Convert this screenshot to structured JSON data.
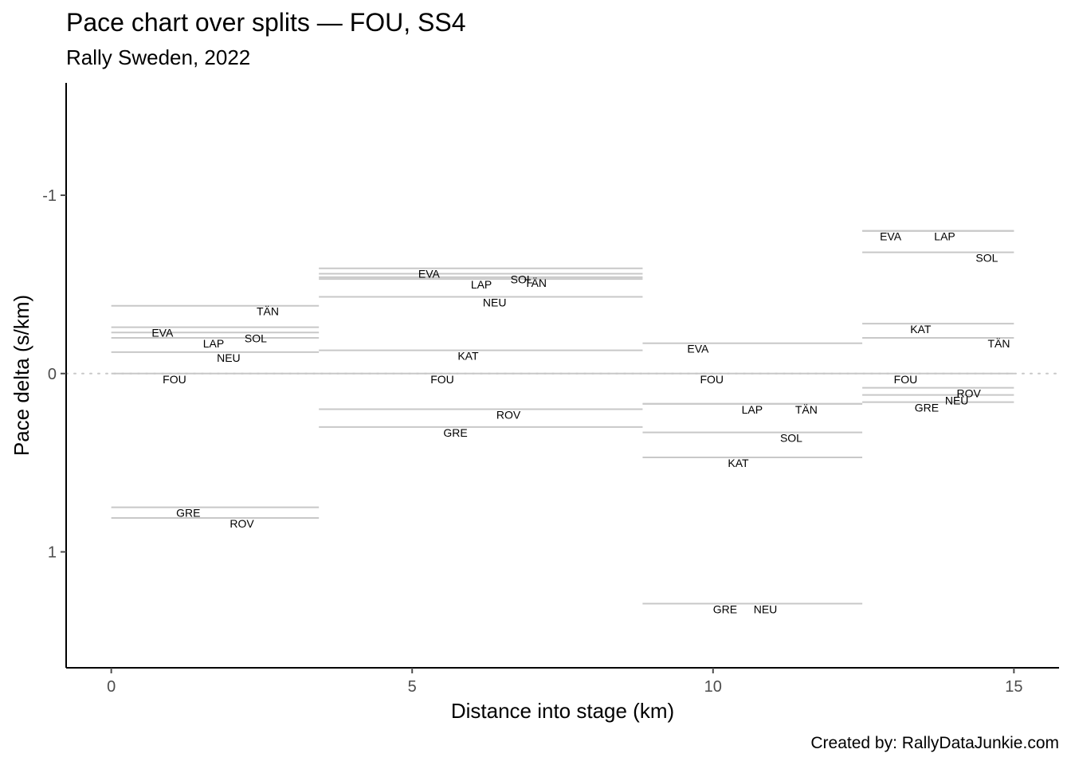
{
  "title": "Pace chart over splits — FOU, SS4",
  "subtitle": "Rally Sweden, 2022",
  "caption": "Created by: RallyDataJunkie.com",
  "colors": {
    "segment": "#c8c8c8",
    "zero_line": "#c8c8c8",
    "axis": "#000000",
    "tick_label": "#4d4d4d"
  },
  "chart_data": {
    "type": "segment",
    "xlabel": "Distance into stage (km)",
    "ylabel": "Pace delta (s/km)",
    "xlim": [
      -0.75,
      15.75
    ],
    "ylim": [
      -1.63,
      1.65
    ],
    "y_reversed": true,
    "x_ticks": [
      0,
      5,
      10,
      15
    ],
    "x_tick_labels": [
      "0",
      "5",
      "10",
      "15"
    ],
    "y_ticks": [
      -1,
      0,
      1
    ],
    "y_tick_labels": [
      "-1",
      "0",
      "1"
    ],
    "zero_line": "dotted",
    "splits": [
      {
        "x_start": 0,
        "x_end": 3.45,
        "drivers": [
          {
            "name": "TÄN",
            "pace": -0.38,
            "label_x": 2.6
          },
          {
            "name": "EVA",
            "pace": -0.26,
            "label_x": 0.85
          },
          {
            "name": "SOL",
            "pace": -0.23,
            "label_x": 2.4
          },
          {
            "name": "LAP",
            "pace": -0.2,
            "label_x": 1.7
          },
          {
            "name": "NEU",
            "pace": -0.12,
            "label_x": 1.95
          },
          {
            "name": "FOU",
            "pace": 0,
            "label_x": 1.05
          },
          {
            "name": "GRE",
            "pace": 0.75,
            "label_x": 1.28
          },
          {
            "name": "ROV",
            "pace": 0.81,
            "label_x": 2.17
          }
        ]
      },
      {
        "x_start": 3.45,
        "x_end": 8.83,
        "drivers": [
          {
            "name": "EVA",
            "pace": -0.59,
            "label_x": 5.28
          },
          {
            "name": "SOL",
            "pace": -0.56,
            "label_x": 6.82
          },
          {
            "name": "TÄN",
            "pace": -0.54,
            "label_x": 7.05
          },
          {
            "name": "LAP",
            "pace": -0.53,
            "label_x": 6.15
          },
          {
            "name": "NEU",
            "pace": -0.43,
            "label_x": 6.37
          },
          {
            "name": "KAT",
            "pace": -0.13,
            "label_x": 5.93
          },
          {
            "name": "FOU",
            "pace": 0,
            "label_x": 5.5
          },
          {
            "name": "ROV",
            "pace": 0.2,
            "label_x": 6.6
          },
          {
            "name": "GRE",
            "pace": 0.3,
            "label_x": 5.72
          }
        ]
      },
      {
        "x_start": 8.83,
        "x_end": 12.48,
        "drivers": [
          {
            "name": "EVA",
            "pace": -0.17,
            "label_x": 9.75
          },
          {
            "name": "FOU",
            "pace": 0,
            "label_x": 9.98
          },
          {
            "name": "TÄN",
            "pace": 0.17,
            "label_x": 11.55
          },
          {
            "name": "LAP",
            "pace": 0.17,
            "label_x": 10.65
          },
          {
            "name": "SOL",
            "pace": 0.33,
            "label_x": 11.3
          },
          {
            "name": "KAT",
            "pace": 0.47,
            "label_x": 10.42
          },
          {
            "name": "GRE",
            "pace": 1.29,
            "label_x": 10.2
          },
          {
            "name": "NEU",
            "pace": 1.29,
            "label_x": 10.87
          }
        ]
      },
      {
        "x_start": 12.48,
        "x_end": 15,
        "drivers": [
          {
            "name": "EVA",
            "pace": -0.8,
            "label_x": 12.95
          },
          {
            "name": "LAP",
            "pace": -0.8,
            "label_x": 13.85
          },
          {
            "name": "SOL",
            "pace": -0.68,
            "label_x": 14.55
          },
          {
            "name": "KAT",
            "pace": -0.28,
            "label_x": 13.45
          },
          {
            "name": "TÄN",
            "pace": -0.2,
            "label_x": 14.75
          },
          {
            "name": "FOU",
            "pace": 0,
            "label_x": 13.2
          },
          {
            "name": "ROV",
            "pace": 0.08,
            "label_x": 14.25
          },
          {
            "name": "NEU",
            "pace": 0.12,
            "label_x": 14.05
          },
          {
            "name": "GRE",
            "pace": 0.16,
            "label_x": 13.55
          }
        ]
      }
    ]
  }
}
